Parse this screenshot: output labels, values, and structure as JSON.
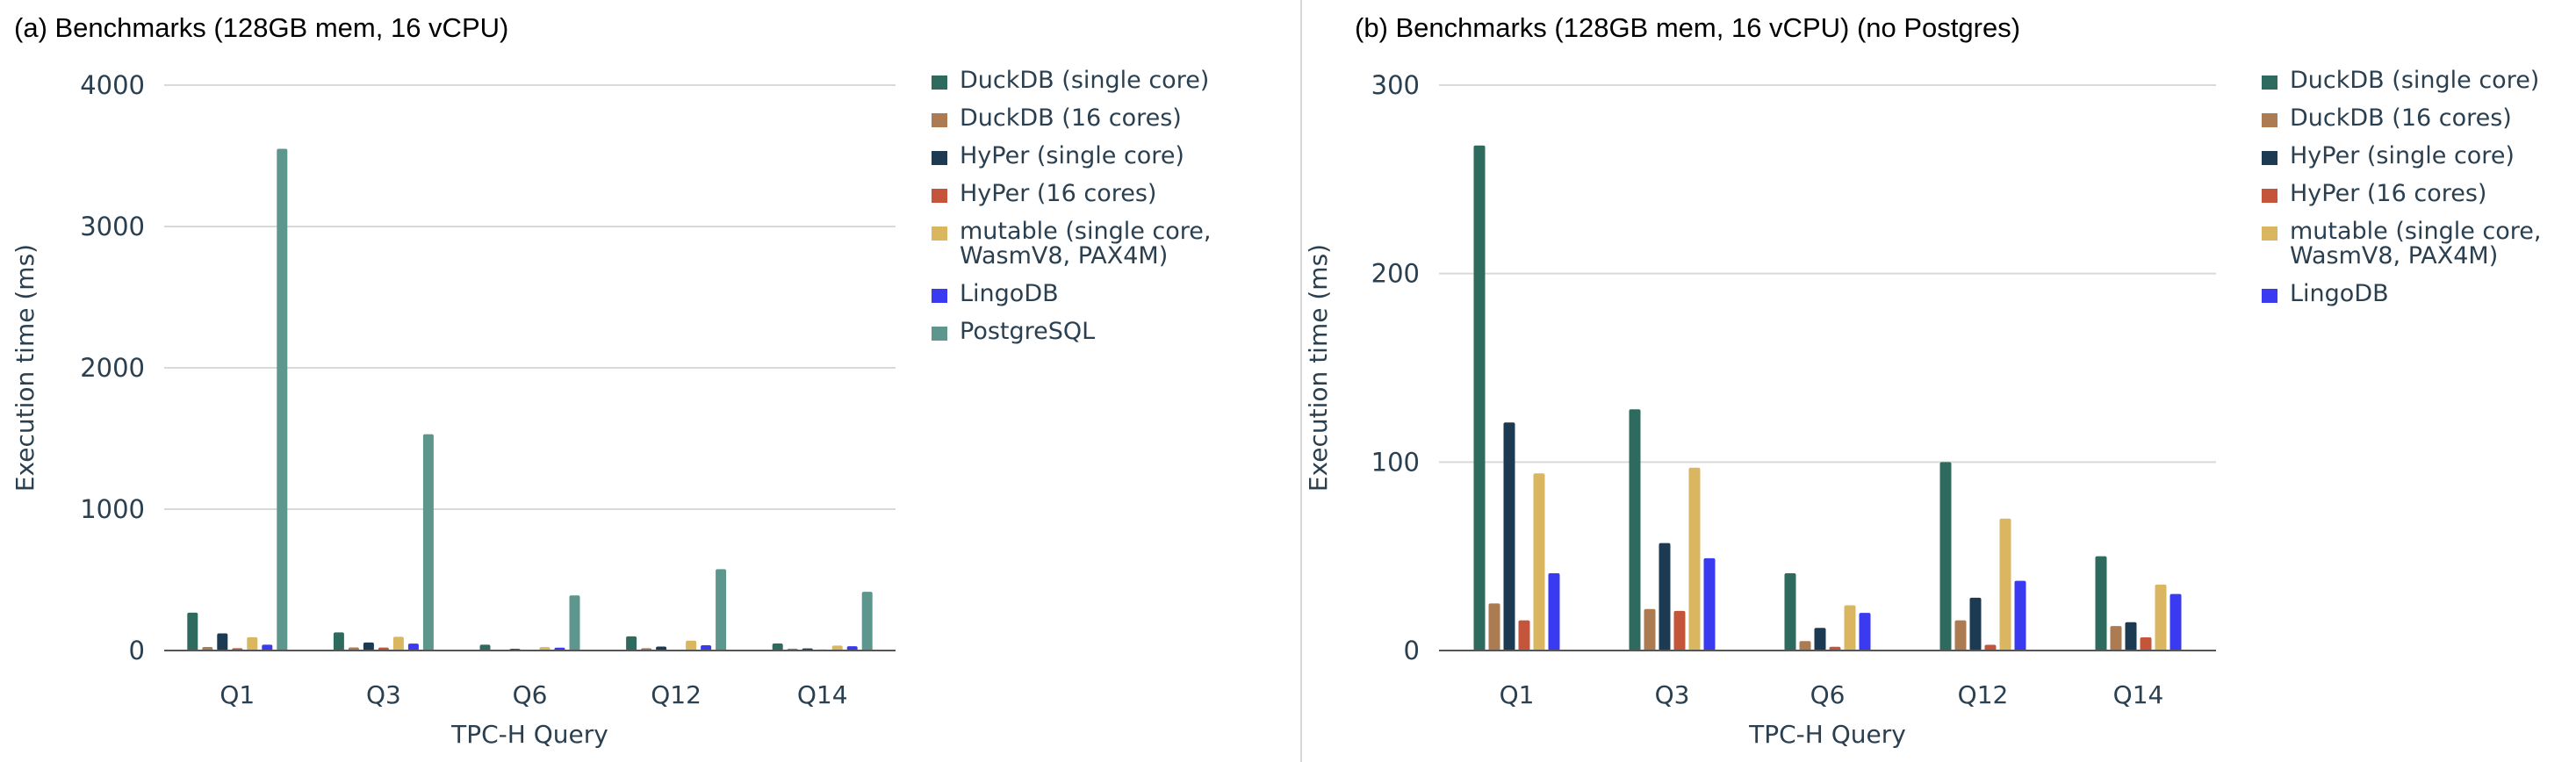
{
  "colors": {
    "DuckDB (single core)": "#2e6b5e",
    "DuckDB (16 cores)": "#ad7b52",
    "HyPer (single core)": "#1c3a52",
    "HyPer (16 cores)": "#c4553b",
    "mutable (single core, WasmV8, PAX4M)": "#dbb661",
    "LingoDB": "#3a3af0",
    "PostgreSQL": "#5c968c"
  },
  "chart_data": [
    {
      "type": "bar",
      "title": "(a) Benchmarks (128GB mem, 16 vCPU)",
      "xlabel": "TPC-H Query",
      "ylabel": "Execution time (ms)",
      "ylim": [
        0,
        4000
      ],
      "yticks": [
        0,
        1000,
        2000,
        3000,
        4000
      ],
      "grid": true,
      "legend": "right",
      "categories": [
        "Q1",
        "Q3",
        "Q6",
        "Q12",
        "Q14"
      ],
      "series": [
        {
          "name": "DuckDB (single core)",
          "values": [
            268,
            128,
            41,
            100,
            50
          ]
        },
        {
          "name": "DuckDB (16 cores)",
          "values": [
            25,
            22,
            5,
            16,
            13
          ]
        },
        {
          "name": "HyPer (single core)",
          "values": [
            121,
            57,
            12,
            28,
            15
          ]
        },
        {
          "name": "HyPer (16 cores)",
          "values": [
            16,
            21,
            2,
            3,
            7
          ]
        },
        {
          "name": "mutable (single core, WasmV8, PAX4M)",
          "values": [
            94,
            97,
            24,
            70,
            35
          ]
        },
        {
          "name": "LingoDB",
          "values": [
            41,
            49,
            20,
            37,
            30
          ]
        },
        {
          "name": "PostgreSQL",
          "values": [
            3550,
            1530,
            390,
            575,
            415
          ]
        }
      ]
    },
    {
      "type": "bar",
      "title": "(b) Benchmarks (128GB mem, 16 vCPU) (no Postgres)",
      "xlabel": "TPC-H Query",
      "ylabel": "Execution time (ms)",
      "ylim": [
        0,
        300
      ],
      "yticks": [
        0,
        100,
        200,
        300
      ],
      "grid": true,
      "legend": "right",
      "categories": [
        "Q1",
        "Q3",
        "Q6",
        "Q12",
        "Q14"
      ],
      "series": [
        {
          "name": "DuckDB (single core)",
          "values": [
            268,
            128,
            41,
            100,
            50
          ]
        },
        {
          "name": "DuckDB (16 cores)",
          "values": [
            25,
            22,
            5,
            16,
            13
          ]
        },
        {
          "name": "HyPer (single core)",
          "values": [
            121,
            57,
            12,
            28,
            15
          ]
        },
        {
          "name": "HyPer (16 cores)",
          "values": [
            16,
            21,
            2,
            3,
            7
          ]
        },
        {
          "name": "mutable (single core, WasmV8, PAX4M)",
          "values": [
            94,
            97,
            24,
            70,
            35
          ]
        },
        {
          "name": "LingoDB",
          "values": [
            41,
            49,
            20,
            37,
            30
          ]
        }
      ]
    }
  ],
  "legend_labels": [
    [
      "DuckDB (single core)",
      "DuckDB (16 cores)",
      "HyPer (single core)",
      "HyPer (16 cores)",
      "mutable (single core,\nWasmV8, PAX4M)",
      "LingoDB",
      "PostgreSQL"
    ],
    [
      "DuckDB (single core)",
      "DuckDB (16 cores)",
      "HyPer (single core)",
      "HyPer (16 cores)",
      "mutable (single core,\nWasmV8, PAX4M)",
      "LingoDB"
    ]
  ]
}
